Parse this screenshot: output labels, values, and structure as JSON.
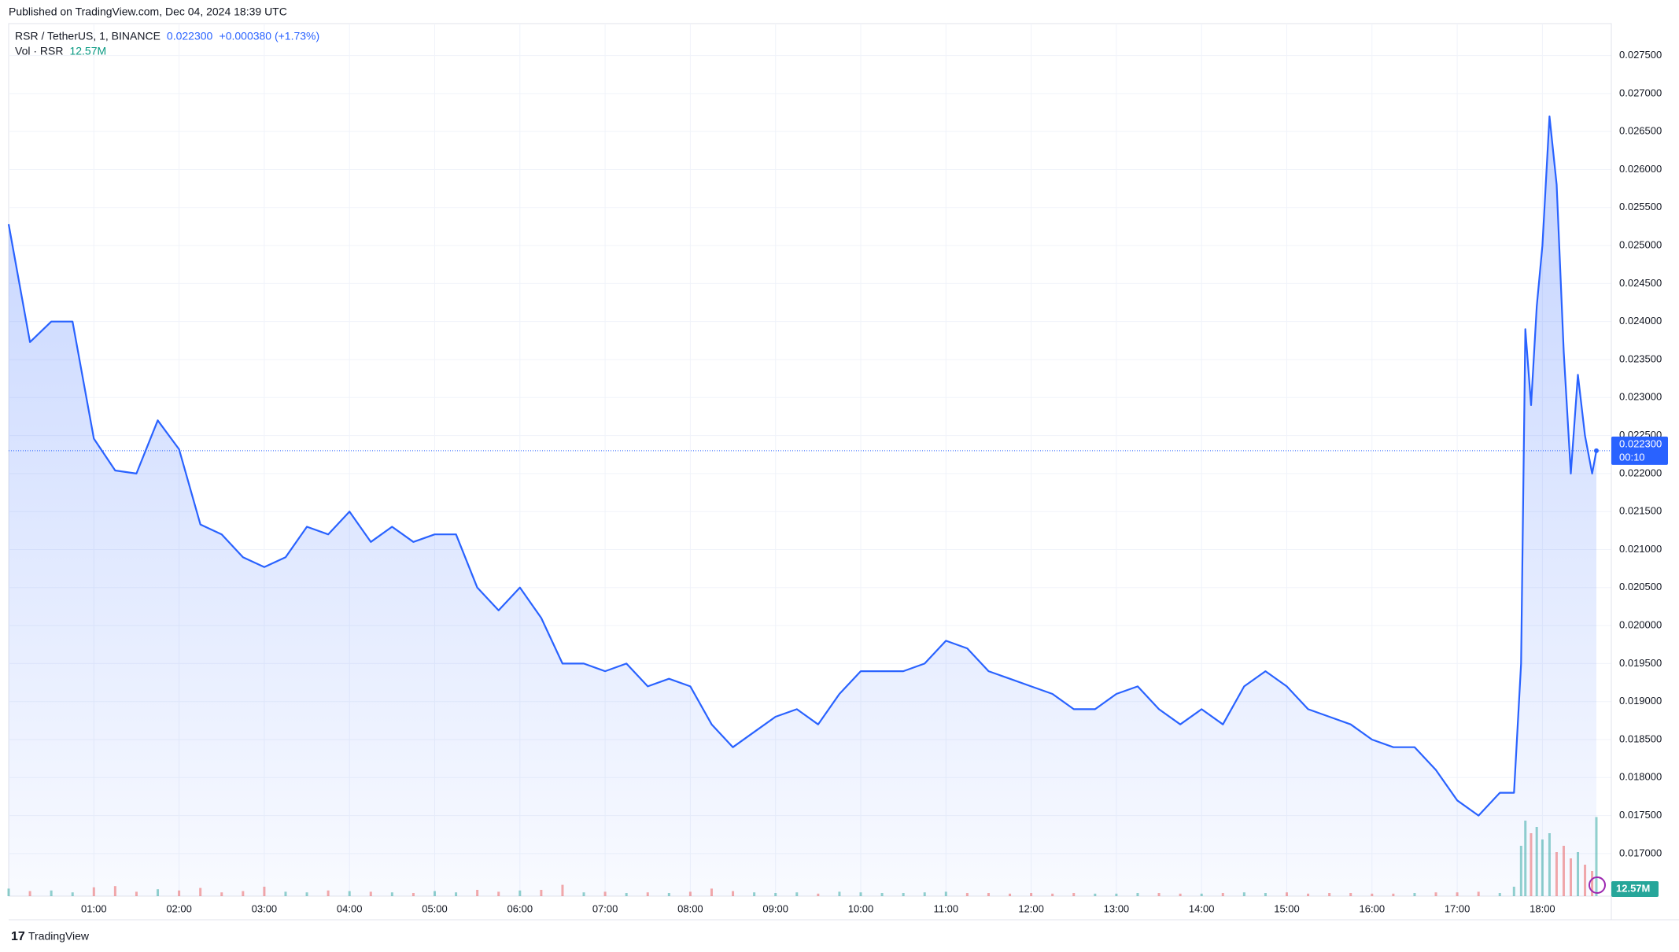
{
  "chart_data": {
    "type": "line",
    "published": "Published on TradingView.com, Dec 04, 2024 18:39 UTC",
    "symbol": "RSR / TetherUS, 1, BINANCE",
    "price_label": "0.022300",
    "change_label": "+0.000380 (+1.73%)",
    "volume_title": "Vol · RSR",
    "volume_label": "12.57M",
    "countdown": "00:10",
    "brand": "TradingView",
    "color": "#2962ff",
    "grid": true,
    "x": [
      "00:00",
      "00:15",
      "00:30",
      "00:45",
      "01:00",
      "01:15",
      "01:30",
      "01:45",
      "02:00",
      "02:15",
      "02:30",
      "02:45",
      "03:00",
      "03:15",
      "03:30",
      "03:45",
      "04:00",
      "04:15",
      "04:30",
      "04:45",
      "05:00",
      "05:15",
      "05:30",
      "05:45",
      "06:00",
      "06:15",
      "06:30",
      "06:45",
      "07:00",
      "07:15",
      "07:30",
      "07:45",
      "08:00",
      "08:15",
      "08:30",
      "08:45",
      "09:00",
      "09:15",
      "09:30",
      "09:45",
      "10:00",
      "10:15",
      "10:30",
      "10:45",
      "11:00",
      "11:15",
      "11:30",
      "11:45",
      "12:00",
      "12:15",
      "12:30",
      "12:45",
      "13:00",
      "13:15",
      "13:30",
      "13:45",
      "14:00",
      "14:15",
      "14:30",
      "14:45",
      "15:00",
      "15:15",
      "15:30",
      "15:45",
      "16:00",
      "16:15",
      "16:30",
      "16:45",
      "17:00",
      "17:15",
      "17:30",
      "17:40",
      "17:45",
      "17:48",
      "17:52",
      "17:56",
      "18:00",
      "18:05",
      "18:10",
      "18:15",
      "18:20",
      "18:25",
      "18:30",
      "18:35",
      "18:38"
    ],
    "series": [
      {
        "name": "RSR / TetherUS",
        "color": "#2962ff",
        "values": [
          0.02528,
          0.02373,
          0.024,
          0.024,
          0.02246,
          0.02204,
          0.022,
          0.0227,
          0.02232,
          0.02133,
          0.0212,
          0.0209,
          0.02077,
          0.0209,
          0.0213,
          0.0212,
          0.0215,
          0.0211,
          0.0213,
          0.0211,
          0.0212,
          0.0212,
          0.0205,
          0.0202,
          0.0205,
          0.0201,
          0.0195,
          0.0195,
          0.0194,
          0.0195,
          0.0192,
          0.0193,
          0.0192,
          0.0187,
          0.0184,
          0.0186,
          0.0188,
          0.0189,
          0.0187,
          0.0191,
          0.0194,
          0.0194,
          0.0194,
          0.0195,
          0.0198,
          0.0197,
          0.0194,
          0.0193,
          0.0192,
          0.0191,
          0.0189,
          0.0189,
          0.0191,
          0.0192,
          0.0189,
          0.0187,
          0.0189,
          0.0187,
          0.0192,
          0.0194,
          0.0192,
          0.0189,
          0.0188,
          0.0187,
          0.0185,
          0.0184,
          0.0184,
          0.0181,
          0.0177,
          0.0175,
          0.0178,
          0.0178,
          0.0195,
          0.0239,
          0.0229,
          0.0242,
          0.025,
          0.0267,
          0.0258,
          0.0236,
          0.022,
          0.0233,
          0.0225,
          0.022,
          0.0223
        ]
      },
      {
        "name": "Vol",
        "color": "#26a69a",
        "values": [
          1.2,
          0.8,
          0.9,
          0.6,
          1.4,
          1.6,
          0.7,
          1.1,
          0.9,
          1.3,
          0.6,
          0.8,
          1.5,
          0.7,
          0.6,
          0.9,
          0.8,
          0.7,
          0.6,
          0.5,
          0.8,
          0.6,
          1.0,
          0.7,
          0.9,
          1.0,
          1.8,
          0.6,
          0.7,
          0.5,
          0.6,
          0.5,
          0.7,
          1.2,
          0.8,
          0.6,
          0.5,
          0.6,
          0.4,
          0.7,
          0.6,
          0.5,
          0.5,
          0.6,
          0.7,
          0.5,
          0.5,
          0.4,
          0.5,
          0.4,
          0.5,
          0.4,
          0.4,
          0.5,
          0.5,
          0.4,
          0.4,
          0.5,
          0.6,
          0.5,
          0.6,
          0.4,
          0.5,
          0.5,
          0.4,
          0.4,
          0.5,
          0.6,
          0.6,
          0.7,
          0.5,
          1.5,
          8,
          12,
          10,
          11,
          9,
          10,
          7,
          8,
          6,
          7,
          5,
          4,
          12.57
        ]
      }
    ],
    "ylim": [
      0.01644,
      0.02792
    ],
    "yticks": [
      {
        "value": 0.017,
        "label": "0.017000"
      },
      {
        "value": 0.0175,
        "label": "0.017500"
      },
      {
        "value": 0.018,
        "label": "0.018000"
      },
      {
        "value": 0.0185,
        "label": "0.018500"
      },
      {
        "value": 0.019,
        "label": "0.019000"
      },
      {
        "value": 0.0195,
        "label": "0.019500"
      },
      {
        "value": 0.02,
        "label": "0.020000"
      },
      {
        "value": 0.0205,
        "label": "0.020500"
      },
      {
        "value": 0.021,
        "label": "0.021000"
      },
      {
        "value": 0.0215,
        "label": "0.021500"
      },
      {
        "value": 0.022,
        "label": "0.022000"
      },
      {
        "value": 0.0225,
        "label": "0.022500"
      },
      {
        "value": 0.023,
        "label": "0.023000"
      },
      {
        "value": 0.0235,
        "label": "0.023500"
      },
      {
        "value": 0.024,
        "label": "0.024000"
      },
      {
        "value": 0.0245,
        "label": "0.024500"
      },
      {
        "value": 0.025,
        "label": "0.025000"
      },
      {
        "value": 0.0255,
        "label": "0.025500"
      },
      {
        "value": 0.026,
        "label": "0.026000"
      },
      {
        "value": 0.0265,
        "label": "0.026500"
      },
      {
        "value": 0.027,
        "label": "0.027000"
      },
      {
        "value": 0.0275,
        "label": "0.027500"
      }
    ],
    "xticks": [
      "01:00",
      "02:00",
      "03:00",
      "04:00",
      "05:00",
      "06:00",
      "07:00",
      "08:00",
      "09:00",
      "10:00",
      "11:00",
      "12:00",
      "13:00",
      "14:00",
      "15:00",
      "16:00",
      "17:00",
      "18:00"
    ]
  }
}
